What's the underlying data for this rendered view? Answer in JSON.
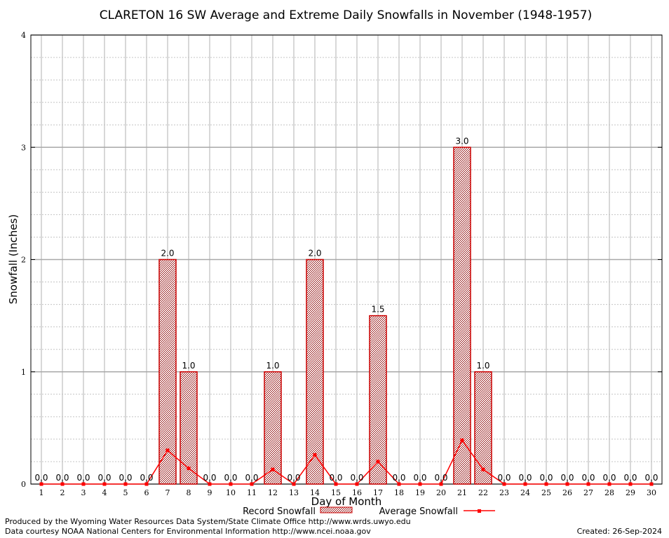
{
  "chart_data": {
    "type": "bar",
    "title": "CLARETON 16 SW Average and Extreme Daily Snowfalls in November (1948-1957)",
    "xlabel": "Day of Month",
    "ylabel": "Snowfall (Inches)",
    "ylim": [
      0,
      4
    ],
    "yticks": [
      "0",
      "1",
      "2",
      "3",
      "4"
    ],
    "categories": [
      "1",
      "2",
      "3",
      "4",
      "5",
      "6",
      "7",
      "8",
      "9",
      "10",
      "11",
      "12",
      "13",
      "14",
      "15",
      "16",
      "17",
      "18",
      "19",
      "20",
      "21",
      "22",
      "23",
      "24",
      "25",
      "26",
      "27",
      "28",
      "29",
      "30"
    ],
    "series": [
      {
        "name": "Record Snowfall",
        "kind": "bar",
        "color": "#cc0000",
        "values": [
          0,
          0,
          0,
          0,
          0,
          0,
          2.0,
          1.0,
          0,
          0,
          0,
          1.0,
          0,
          2.0,
          0,
          0,
          1.5,
          0,
          0,
          0,
          3.0,
          1.0,
          0,
          0,
          0,
          0,
          0,
          0,
          0,
          0
        ],
        "labels": [
          "0.0",
          "0.0",
          "0.0",
          "0.0",
          "0.0",
          "0.0",
          "2.0",
          "1.0",
          "0.0",
          "0.0",
          "0.0",
          "1.0",
          "0.0",
          "2.0",
          "0.0",
          "0.0",
          "1.5",
          "0.0",
          "0.0",
          "0.0",
          "3.0",
          "1.0",
          "0.0",
          "0.0",
          "0.0",
          "0.0",
          "0.0",
          "0.0",
          "0.0",
          "0.0"
        ]
      },
      {
        "name": "Average Snowfall",
        "kind": "line",
        "color": "#ff0000",
        "values": [
          0,
          0,
          0,
          0,
          0,
          0,
          0.3,
          0.14,
          0,
          0,
          0,
          0.13,
          0,
          0.26,
          0,
          0,
          0.2,
          0,
          0,
          0,
          0.39,
          0.13,
          0,
          0,
          0,
          0,
          0,
          0,
          0,
          0
        ]
      }
    ],
    "legend": {
      "placement": "bottom-center"
    },
    "grid": true
  },
  "footer": {
    "produced_by": "Produced by the Wyoming Water Resources Data System/State Climate Office http://www.wrds.uwyo.edu",
    "courtesy": "Data courtesy NOAA National Centers for Environmental Information http://www.ncei.noaa.gov",
    "created": "Created:  26-Sep-2024"
  }
}
